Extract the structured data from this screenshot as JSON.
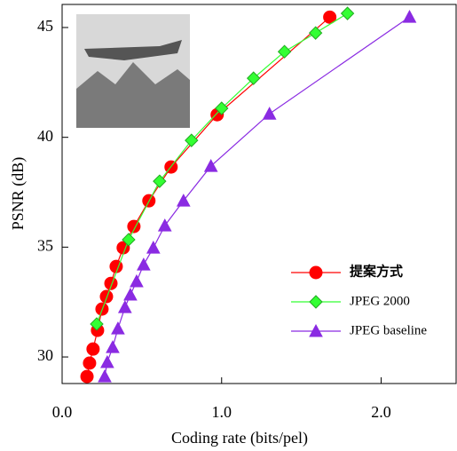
{
  "chart_data": {
    "type": "line",
    "x_label": "Coding rate (bits/pel)",
    "y_label": "PSNR (dB)",
    "xlim": [
      0,
      2.47
    ],
    "ylim": [
      28.79,
      46.05
    ],
    "xticks": [
      {
        "value": 0,
        "label": "0.0"
      },
      {
        "value": 1,
        "label": "1.0"
      },
      {
        "value": 2,
        "label": "2.0"
      }
    ],
    "yticks": [
      30,
      35,
      40,
      45
    ],
    "legend": "right",
    "series": [
      {
        "name": "提案方式",
        "color": "#ff0000",
        "marker": "circle",
        "x": [
          0.156,
          0.172,
          0.194,
          0.222,
          0.25,
          0.278,
          0.306,
          0.339,
          0.383,
          0.45,
          0.544,
          0.683,
          0.972,
          1.678
        ],
        "values": [
          29.11,
          29.72,
          30.36,
          31.21,
          32.18,
          32.75,
          33.35,
          34.12,
          34.97,
          35.94,
          37.11,
          38.65,
          41.03,
          45.47
        ]
      },
      {
        "name": "JPEG 2000",
        "color": "#33ff33",
        "marker": "diamond",
        "x": [
          0.217,
          0.417,
          0.611,
          0.811,
          1.0,
          1.2,
          1.394,
          1.589,
          1.789
        ],
        "values": [
          31.5,
          35.34,
          38.0,
          39.86,
          41.32,
          42.69,
          43.9,
          44.75,
          45.64
        ]
      },
      {
        "name": "JPEG baseline",
        "color": "#8a2be2",
        "marker": "triangle",
        "x": [
          0.267,
          0.283,
          0.317,
          0.35,
          0.394,
          0.428,
          0.467,
          0.511,
          0.572,
          0.644,
          0.761,
          0.933,
          1.3,
          2.178
        ],
        "values": [
          29.11,
          29.76,
          30.44,
          31.29,
          32.26,
          32.83,
          33.44,
          34.2,
          34.97,
          35.98,
          37.11,
          38.69,
          41.07,
          45.48
        ]
      }
    ]
  }
}
